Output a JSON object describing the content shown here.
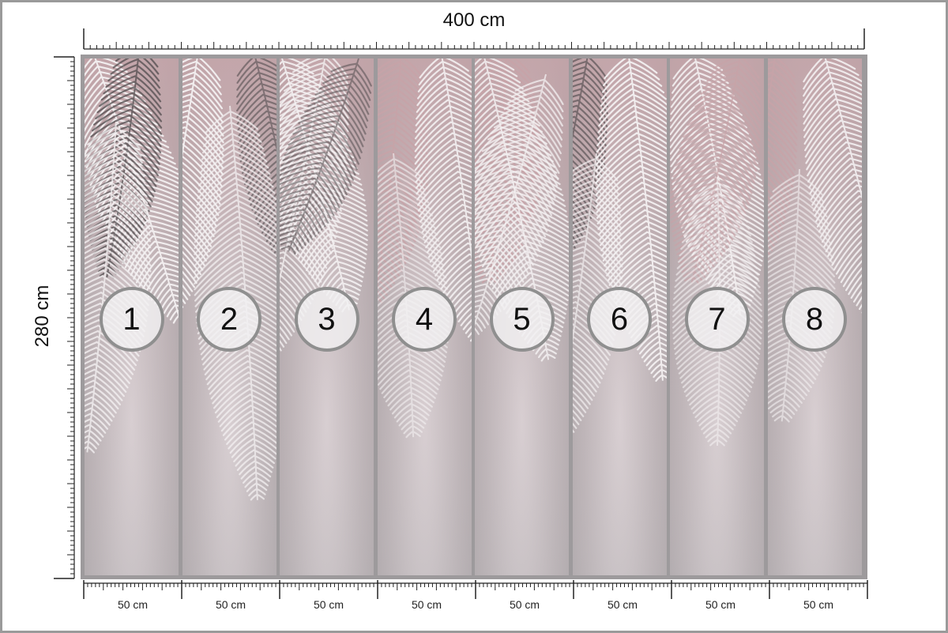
{
  "dimensions": {
    "width_label": "400 cm",
    "height_label": "280 cm"
  },
  "panels": [
    {
      "number": "1",
      "width_label": "50 cm"
    },
    {
      "number": "2",
      "width_label": "50 cm"
    },
    {
      "number": "3",
      "width_label": "50 cm"
    },
    {
      "number": "4",
      "width_label": "50 cm"
    },
    {
      "number": "5",
      "width_label": "50 cm"
    },
    {
      "number": "6",
      "width_label": "50 cm"
    },
    {
      "number": "7",
      "width_label": "50 cm"
    },
    {
      "number": "8",
      "width_label": "50 cm"
    }
  ],
  "colors": {
    "background_gray": "#bdb6b9",
    "blush_pink": "#c8a3a8",
    "frond_white": "#f4f1f2",
    "frond_dark": "#4a4648",
    "divider": "#8f8f8f"
  }
}
